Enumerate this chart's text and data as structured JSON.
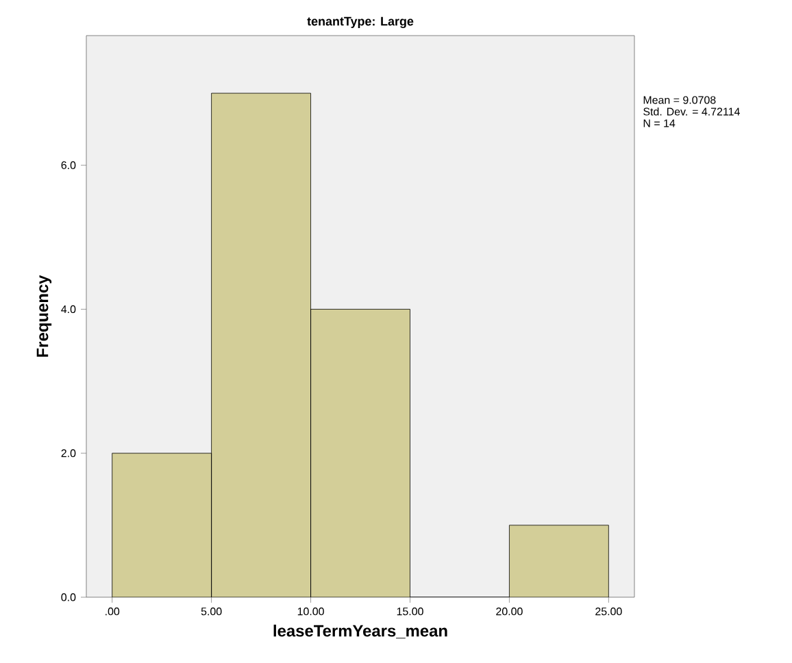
{
  "chart_data": {
    "type": "histogram",
    "title": "tenantType: Large",
    "xlabel": "leaseTermYears_mean",
    "ylabel": "Frequency",
    "bins": [
      0,
      5,
      10,
      15,
      20,
      25
    ],
    "values": [
      2,
      7,
      4,
      0,
      1
    ],
    "color": "#d3ce98",
    "xlim": [
      -1.3,
      26.3
    ],
    "ylim": [
      0,
      7.8
    ],
    "xticks": [
      {
        "value": 0,
        "label": ".00"
      },
      {
        "value": 5,
        "label": "5.00"
      },
      {
        "value": 10,
        "label": "10.00"
      },
      {
        "value": 15,
        "label": "15.00"
      },
      {
        "value": 20,
        "label": "20.00"
      },
      {
        "value": 25,
        "label": "25.00"
      }
    ],
    "yticks": [
      {
        "value": 0,
        "label": "0.0"
      },
      {
        "value": 2,
        "label": "2.0"
      },
      {
        "value": 4,
        "label": "4.0"
      },
      {
        "value": 6,
        "label": "6.0"
      }
    ],
    "annotations": [
      "Mean = 9.0708",
      "Std. Dev. = 4.72114",
      "N = 14"
    ]
  }
}
